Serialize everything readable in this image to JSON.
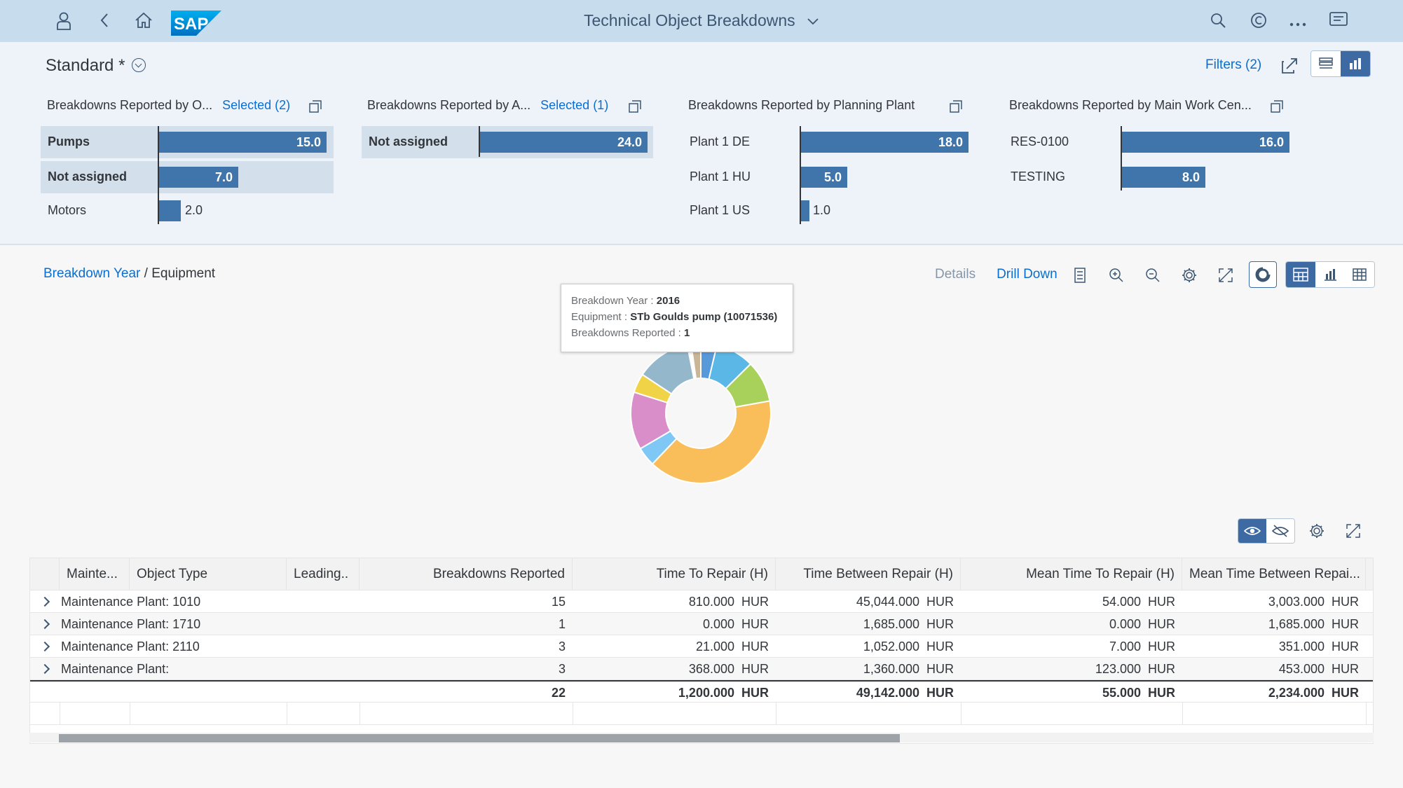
{
  "shell": {
    "title": "Technical Object Breakdowns",
    "icons": [
      "user-icon",
      "back-icon",
      "home-icon",
      "search-icon",
      "copilot-icon",
      "overflow-icon",
      "notifications-icon"
    ]
  },
  "header": {
    "variant": "Standard *",
    "filters_label": "Filters (2)",
    "cards": [
      {
        "title": "Breakdowns Reported by O...",
        "selected": "Selected (2)",
        "items": [
          {
            "label": "Pumps",
            "value": "15.0",
            "num": 15,
            "selected": true
          },
          {
            "label": "Not assigned",
            "value": "7.0",
            "num": 7,
            "selected": true
          },
          {
            "label": "Motors",
            "value": "2.0",
            "num": 2,
            "selected": false
          }
        ]
      },
      {
        "title": "Breakdowns Reported by A...",
        "selected": "Selected (1)",
        "items": [
          {
            "label": "Not assigned",
            "value": "24.0",
            "num": 24,
            "selected": true
          }
        ]
      },
      {
        "title": "Breakdowns Reported by Planning Plant",
        "selected": "",
        "items": [
          {
            "label": "Plant 1 DE",
            "value": "18.0",
            "num": 18,
            "selected": false
          },
          {
            "label": "Plant 1 HU",
            "value": "5.0",
            "num": 5,
            "selected": false
          },
          {
            "label": "Plant 1 US",
            "value": "1.0",
            "num": 1,
            "selected": false
          }
        ]
      },
      {
        "title": "Breakdowns Reported by Main Work Cen...",
        "selected": "",
        "items": [
          {
            "label": "RES-0100",
            "value": "16.0",
            "num": 16,
            "selected": false
          },
          {
            "label": "TESTING",
            "value": "8.0",
            "num": 8,
            "selected": false
          }
        ]
      }
    ]
  },
  "chart": {
    "breadcrumb_link": "Breakdown Year",
    "breadcrumb_sep": "/",
    "breadcrumb_current": "Equipment",
    "details_label": "Details",
    "drilldown_label": "Drill Down",
    "tooltip": {
      "year_label": "Breakdown Year",
      "year_value": "2016",
      "equipment_label": "Equipment",
      "equipment_value": "STb Goulds pump (10071536)",
      "reported_label": "Breakdowns Reported",
      "reported_value": "1"
    }
  },
  "chart_data": {
    "type": "pie",
    "variant": "donut",
    "slices": [
      {
        "value": 0.5,
        "color": "#5899da"
      },
      {
        "value": 1.2,
        "color": "#5ab7e6"
      },
      {
        "value": 1.3,
        "color": "#a8d15c"
      },
      {
        "value": 5.4,
        "color": "#f9be5a"
      },
      {
        "value": 0.6,
        "color": "#7fc8f5"
      },
      {
        "value": 1.8,
        "color": "#d98dc9"
      },
      {
        "value": 0.6,
        "color": "#f0d346"
      },
      {
        "value": 1.7,
        "color": "#94b7cc"
      },
      {
        "value": 0.12,
        "color": "#ffffff"
      },
      {
        "value": 0.3,
        "color": "#c9b597"
      }
    ]
  },
  "table": {
    "columns": [
      "Mainte...",
      "Object Type",
      "Leading..",
      "Breakdowns Reported",
      "Time To Repair (H)",
      "Time Between Repair (H)",
      "Mean Time To Repair (H)",
      "Mean Time Between Repai..."
    ],
    "rows": [
      {
        "plant": "Maintenance Plant: 1010",
        "reported": "15",
        "ttr": "810.000",
        "tbr": "45,044.000",
        "mttr": "54.000",
        "mtbr": "3,003.000"
      },
      {
        "plant": "Maintenance Plant: 1710",
        "reported": "1",
        "ttr": "0.000",
        "tbr": "1,685.000",
        "mttr": "0.000",
        "mtbr": "1,685.000"
      },
      {
        "plant": "Maintenance Plant: 2110",
        "reported": "3",
        "ttr": "21.000",
        "tbr": "1,052.000",
        "mttr": "7.000",
        "mtbr": "351.000"
      },
      {
        "plant": "Maintenance Plant:",
        "reported": "3",
        "ttr": "368.000",
        "tbr": "1,360.000",
        "mttr": "123.000",
        "mtbr": "453.000"
      }
    ],
    "total": {
      "reported": "22",
      "ttr": "1,200.000",
      "tbr": "49,142.000",
      "mttr": "55.000",
      "mtbr": "2,234.000"
    },
    "unit": "HUR"
  }
}
